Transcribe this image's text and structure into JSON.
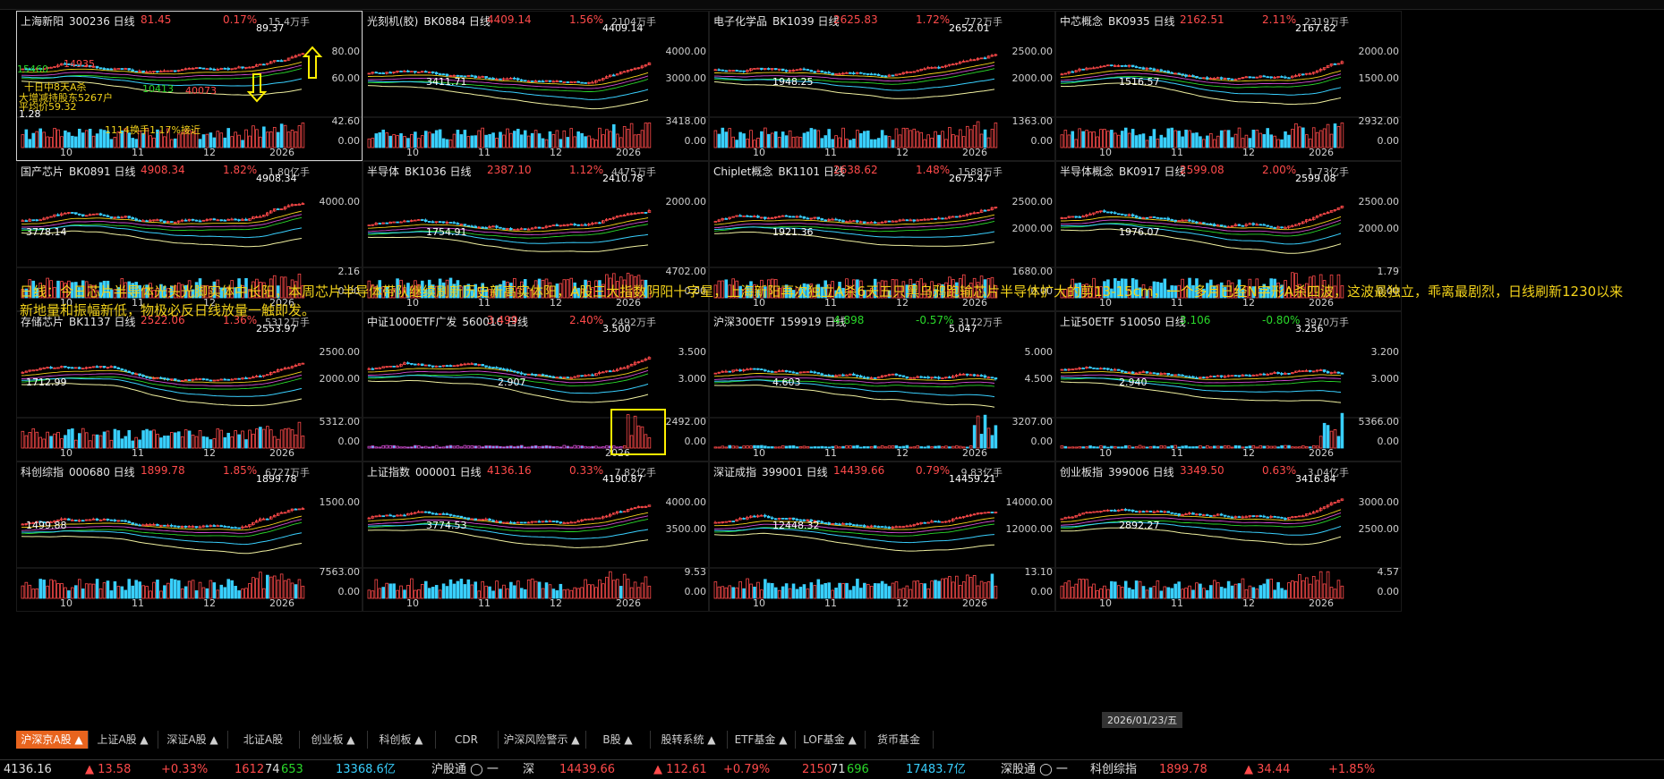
{
  "panels": [
    {
      "name": "上海新阳",
      "code": "300236 日线",
      "price": "81.45",
      "pct": "0.17%",
      "neg": false,
      "vol": "15.4万手",
      "peak": "89.37",
      "low": "",
      "ax": [
        "80.00",
        "60.00",
        "42.60",
        "0.00"
      ],
      "xl": [
        "10",
        "11",
        "12",
        "2026"
      ],
      "sel": true
    },
    {
      "name": "光刻机(胶)",
      "code": "BK0884 日线",
      "price": "4409.14",
      "pct": "1.56%",
      "neg": false,
      "vol": "2104万手",
      "peak": "4409.14",
      "low": "3411.71",
      "ax": [
        "4000.00",
        "3000.00",
        "3418.00",
        "0.00"
      ],
      "xl": [
        "10",
        "11",
        "12",
        "2026"
      ]
    },
    {
      "name": "电子化学品",
      "code": "BK1039 日线",
      "price": "2625.83",
      "pct": "1.72%",
      "neg": false,
      "vol": "772万手",
      "peak": "2652.01",
      "low": "1948.25",
      "ax": [
        "2500.00",
        "2000.00",
        "1363.00",
        "0.00"
      ],
      "xl": [
        "10",
        "11",
        "12",
        "2026"
      ]
    },
    {
      "name": "中芯概念",
      "code": "BK0935 日线",
      "price": "2162.51",
      "pct": "2.11%",
      "neg": false,
      "vol": "2319万手",
      "peak": "2167.62",
      "low": "1516.57",
      "ax": [
        "2000.00",
        "1500.00",
        "2932.00",
        "0.00"
      ],
      "xl": [
        "10",
        "11",
        "12",
        "2026"
      ]
    },
    {
      "name": "国产芯片",
      "code": "BK0891 日线",
      "price": "4908.34",
      "pct": "1.82%",
      "neg": false,
      "vol": "1.80亿手",
      "peak": "4908.34",
      "low": "3778.14",
      "ax": [
        "4000.00",
        "",
        "2.16",
        "0.00"
      ],
      "xl": [
        "10",
        "11",
        "12",
        "2026"
      ]
    },
    {
      "name": "半导体",
      "code": "BK1036 日线",
      "price": "2387.10",
      "pct": "1.12%",
      "neg": false,
      "vol": "4475万手",
      "peak": "2410.78",
      "low": "1754.91",
      "ax": [
        "2000.00",
        "",
        "4702.00",
        "0.00"
      ],
      "xl": [
        "10",
        "11",
        "12",
        "2026"
      ]
    },
    {
      "name": "Chiplet概念",
      "code": "BK1101 日线",
      "price": "2638.62",
      "pct": "1.48%",
      "neg": false,
      "vol": "1588万手",
      "peak": "2675.47",
      "low": "1921.36",
      "ax": [
        "2500.00",
        "2000.00",
        "1680.00",
        "0.00"
      ],
      "xl": [
        "10",
        "11",
        "12",
        "2026"
      ]
    },
    {
      "name": "半导体概念",
      "code": "BK0917 日线",
      "price": "2599.08",
      "pct": "2.00%",
      "neg": false,
      "vol": "1.73亿手",
      "peak": "2599.08",
      "low": "1976.07",
      "ax": [
        "2500.00",
        "2000.00",
        "1.79",
        "0.00"
      ],
      "xl": [
        "10",
        "11",
        "12",
        "2026"
      ]
    },
    {
      "name": "存储芯片",
      "code": "BK1137 日线",
      "price": "2522.06",
      "pct": "1.36%",
      "neg": false,
      "vol": "5312万手",
      "peak": "2553.97",
      "low": "1712.99",
      "ax": [
        "2500.00",
        "2000.00",
        "5312.00",
        "0.00"
      ],
      "xl": [
        "10",
        "11",
        "12",
        "2026"
      ]
    },
    {
      "name": "中证1000ETF广发",
      "code": "560010 日线",
      "price": "3.499",
      "pct": "2.40%",
      "neg": false,
      "vol": "2492万手",
      "peak": "3.500",
      "low": "2.907",
      "ax": [
        "3.500",
        "3.000",
        "2492.00",
        "0.00"
      ],
      "xl": [
        "2026"
      ]
    },
    {
      "name": "沪深300ETF",
      "code": "159919 日线",
      "price": "4.898",
      "pct": "-0.57%",
      "neg": true,
      "vol": "3172万手",
      "peak": "5.047",
      "low": "4.603",
      "ax": [
        "5.000",
        "4.500",
        "3207.00",
        "0.00"
      ],
      "xl": [
        "10",
        "11",
        "12",
        "2026"
      ]
    },
    {
      "name": "上证50ETF",
      "code": "510050 日线",
      "price": "3.106",
      "pct": "-0.80%",
      "neg": true,
      "vol": "3970万手",
      "peak": "3.256",
      "low": "2.940",
      "ax": [
        "3.200",
        "3.000",
        "5366.00",
        "0.00"
      ],
      "xl": [
        "10",
        "11",
        "12",
        "2026"
      ]
    },
    {
      "name": "科创综指",
      "code": "000680 日线",
      "price": "1899.78",
      "pct": "1.85%",
      "neg": false,
      "vol": "6727万手",
      "peak": "1899.78",
      "low": "1499.88",
      "ax": [
        "1500.00",
        "",
        "7563.00",
        "0.00"
      ],
      "xl": [
        "10",
        "11",
        "12",
        "2026"
      ]
    },
    {
      "name": "上证指数",
      "code": "000001 日线",
      "price": "4136.16",
      "pct": "0.33%",
      "neg": false,
      "vol": "7.82亿手",
      "peak": "4190.87",
      "low": "3774.53",
      "ax": [
        "4000.00",
        "3500.00",
        "9.53",
        "0.00"
      ],
      "xl": [
        "10",
        "11",
        "12",
        "2026"
      ]
    },
    {
      "name": "深证成指",
      "code": "399001 日线",
      "price": "14439.66",
      "pct": "0.79%",
      "neg": false,
      "vol": "9.83亿手",
      "peak": "14459.21",
      "low": "12448.32",
      "ax": [
        "14000.00",
        "12000.00",
        "13.10",
        "0.00"
      ],
      "xl": [
        "10",
        "11",
        "12",
        "2026"
      ]
    },
    {
      "name": "创业板指",
      "code": "399006 日线",
      "price": "3349.50",
      "pct": "0.63%",
      "neg": false,
      "vol": "3.04亿手",
      "peak": "3416.84",
      "low": "2892.27",
      "ax": [
        "3000.00",
        "2500.00",
        "4.57",
        "0.00"
      ],
      "xl": [
        "10",
        "11",
        "12",
        "2026"
      ]
    }
  ],
  "panel0_ann": {
    "a1": "89.37",
    "a2": "14935",
    "a3": "15460",
    "a4": "十日中8天A杀",
    "a5": "大增减持股东5267户",
    "a6": "平均价59.32",
    "a7": "1114换手1.17%接近",
    "a8": "1.28",
    "a9": "10413",
    "a10": "40073"
  },
  "note": "日线：今日芯片半导体光头光脚实体中长阳，本周芯片半导体带队继续刷新历史新高实体阳，A股三大指数阴阳十字星，上海新阳再次独立A杀6天五只黑乌鸦跑输芯片半导体扩大的剪13-15cm，一个多月已经N字形A杀四波，这波最独立，乖离最剧烈，日线刷新1230以来新地量和振幅新低，物极必反日线放量一触即发。",
  "date": "2026/01/23/五",
  "tabs": [
    "沪深京A股 ▲",
    "上证A股 ▲",
    "深证A股 ▲",
    "北证A股",
    "创业板 ▲",
    "科创板 ▲",
    "CDR",
    "沪深风险警示 ▲",
    "B股 ▲",
    "股转系统 ▲",
    "ETF基金 ▲",
    "LOF基金 ▲",
    "货币基金"
  ],
  "status": {
    "sh": "4136.16",
    "sh_chg": "▲ 13.58",
    "sh_pct": "+0.33%",
    "sh_up": "1612",
    "sh_eq": "74",
    "sh_dn": "653",
    "sh_amt": "13368.6亿",
    "hgt": "沪股通 ◯ 一",
    "sz_lbl": "深",
    "sz": "14439.66",
    "sz_chg": "▲ 112.61",
    "sz_pct": "+0.79%",
    "sz_up": "2150",
    "sz_eq": "71",
    "sz_dn": "696",
    "sz_amt": "17483.7亿",
    "sgt": "深股通 ◯ 一",
    "kc_lbl": "科创综指",
    "kc": "1899.78",
    "kc_chg": "▲ 34.44",
    "kc_pct": "+1.85%"
  },
  "colors": {
    "up": "#ff4a4a",
    "down": "#2ad82a",
    "cyan": "#39d0ff",
    "accent": "#e8641e",
    "note": "#f2d21a"
  }
}
